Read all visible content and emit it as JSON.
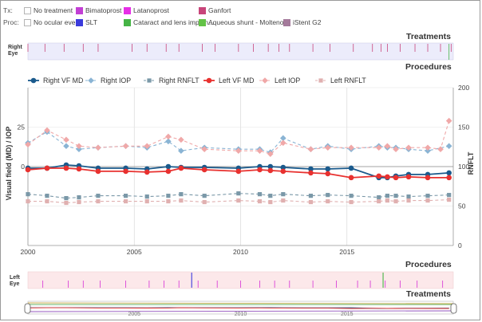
{
  "legend_tx": {
    "label": "Tx:",
    "items": [
      {
        "name": "No treatment",
        "color": "#ffffff"
      },
      {
        "name": "Bimatoprost",
        "color": "#c23fd4"
      },
      {
        "name": "Latanoprost",
        "color": "#e62ee6"
      },
      {
        "name": "Ganfort",
        "color": "#c8457a"
      }
    ]
  },
  "legend_proc": {
    "label": "Proc:",
    "items": [
      {
        "name": "No ocular event",
        "color": "#ffffff"
      },
      {
        "name": "SLT",
        "color": "#3b3bdc"
      },
      {
        "name": "Cataract and lens implan...",
        "color": "#46b446"
      },
      {
        "name": "Aqueous shunt - Molteno...",
        "color": "#63c246"
      },
      {
        "name": "iStent G2",
        "color": "#a47a9b"
      }
    ]
  },
  "right_eye": {
    "label_line1": "Right",
    "label_line2": "Eye",
    "treatments_title": "Treatments",
    "procedures_title": "Procedures",
    "treatment_marks": [
      2000.0,
      2000.8,
      2001.7,
      2002.6,
      2003.3,
      2004.9,
      2005.6,
      2006.5,
      2007.1,
      2008.2,
      2008.8,
      2009.9,
      2010.6,
      2011.3,
      2011.8,
      2012.3,
      2013.4,
      2014.2,
      2015.3,
      2016.2,
      2016.6,
      2016.9,
      2017.5,
      2018.2,
      2018.8,
      2019.4,
      2019.9
    ]
  },
  "left_eye": {
    "label_line1": "Left",
    "label_line2": "Eye",
    "treatments_title": "Treatments",
    "procedures_title": "Procedures",
    "treatment_marks": [
      2000.7,
      2001.9,
      2002.6,
      2003.4,
      2004.6,
      2005.7,
      2006.4,
      2007.1,
      2008.0,
      2008.9,
      2010.0,
      2010.9,
      2011.6,
      2012.3,
      2013.4,
      2014.5,
      2015.5,
      2016.1,
      2016.8,
      2017.5,
      2018.3,
      2019.5
    ],
    "procedure_marks": [
      {
        "x": 2007.7,
        "color": "#3b3bdc"
      },
      {
        "x": 2016.7,
        "color": "#46b446"
      }
    ]
  },
  "chart_data": {
    "type": "line",
    "xlim": [
      2000,
      2020
    ],
    "x_ticks": [
      2000,
      2005,
      2010,
      2015
    ],
    "ylabel_left": "Visual field (MD) / IOP",
    "ylabel_right": "RNFLT",
    "ylim_left": [
      -50,
      50
    ],
    "y_ticks_left": [
      0,
      25
    ],
    "ylim_right": [
      0,
      200
    ],
    "y_ticks_right": [
      0,
      50,
      100,
      150,
      200
    ],
    "grid": true,
    "legend_position": "top",
    "series": [
      {
        "name": "Right VF MD",
        "axis": "left",
        "color": "#1a5a8c",
        "dash": "solid",
        "marker": "circle",
        "x": [
          2000.0,
          2000.9,
          2001.8,
          2002.4,
          2003.3,
          2004.6,
          2005.6,
          2006.6,
          2007.2,
          2008.3,
          2009.9,
          2010.9,
          2011.4,
          2012.0,
          2013.3,
          2014.1,
          2015.2,
          2016.5,
          2016.9,
          2017.3,
          2017.9,
          2018.8,
          2019.8
        ],
        "y": [
          -1,
          -1,
          1,
          0.5,
          -1,
          -1,
          -1.5,
          0,
          -0.5,
          -0.5,
          -1,
          0,
          0,
          -0.5,
          -1.5,
          -1.5,
          -1,
          -7,
          -7,
          -6,
          -5,
          -5,
          -4
        ]
      },
      {
        "name": "Right IOP",
        "axis": "left",
        "color": "#8ab4d4",
        "dash": "4,3",
        "marker": "diamond",
        "x": [
          2000.0,
          2000.9,
          2001.8,
          2002.4,
          2003.3,
          2004.6,
          2005.6,
          2006.6,
          2007.2,
          2008.3,
          2009.9,
          2010.9,
          2011.4,
          2012.0,
          2013.3,
          2014.1,
          2015.2,
          2016.5,
          2016.9,
          2017.3,
          2017.9,
          2018.8,
          2019.8
        ],
        "y": [
          15,
          22,
          13,
          11,
          12,
          13,
          12,
          16,
          10,
          12,
          11,
          11,
          9,
          18,
          11,
          13,
          11,
          13,
          12,
          12,
          11,
          10,
          13
        ]
      },
      {
        "name": "Right RNFLT",
        "axis": "right",
        "color": "#7a98a8",
        "dash": "4,3",
        "marker": "square",
        "x": [
          2000.0,
          2000.9,
          2001.8,
          2002.4,
          2003.3,
          2004.6,
          2005.6,
          2006.6,
          2007.2,
          2008.3,
          2009.9,
          2010.9,
          2011.4,
          2012.0,
          2013.3,
          2014.1,
          2015.2,
          2016.5,
          2016.9,
          2017.3,
          2017.9,
          2018.8,
          2019.8
        ],
        "y": [
          65,
          63,
          60,
          61,
          63,
          63,
          62,
          63,
          65,
          63,
          66,
          65,
          63,
          65,
          63,
          64,
          63,
          61,
          63,
          63,
          62,
          63,
          64
        ]
      },
      {
        "name": "Left VF MD",
        "axis": "left",
        "color": "#e8312f",
        "dash": "solid",
        "marker": "circle",
        "x": [
          2000.0,
          2000.9,
          2001.8,
          2002.4,
          2003.3,
          2004.6,
          2005.6,
          2006.6,
          2007.2,
          2008.3,
          2009.9,
          2010.9,
          2011.4,
          2012.0,
          2013.3,
          2014.1,
          2015.2,
          2016.5,
          2016.9,
          2017.3,
          2017.9,
          2018.8,
          2019.8
        ],
        "y": [
          -2,
          -1,
          -1,
          -1.5,
          -3,
          -3,
          -3.5,
          -3,
          -1,
          -2,
          -3,
          -2,
          -2.5,
          -3,
          -4,
          -4.5,
          -7,
          -6,
          -6.5,
          -7,
          -6.5,
          -7,
          -7
        ]
      },
      {
        "name": "Left IOP",
        "axis": "left",
        "color": "#f0a8a8",
        "dash": "4,3",
        "marker": "diamond",
        "x": [
          2000.0,
          2000.9,
          2001.8,
          2002.4,
          2003.3,
          2004.6,
          2005.6,
          2006.6,
          2007.2,
          2008.3,
          2009.9,
          2010.9,
          2011.4,
          2012.0,
          2013.3,
          2014.1,
          2015.2,
          2016.5,
          2016.9,
          2017.3,
          2017.9,
          2018.8,
          2019.4,
          2019.8
        ],
        "y": [
          14,
          23,
          17,
          13,
          12,
          13,
          13,
          19,
          17,
          11,
          10,
          10,
          8,
          15,
          11,
          12,
          12,
          12,
          13,
          11,
          12,
          12,
          11,
          29
        ]
      },
      {
        "name": "Left RNFLT",
        "axis": "right",
        "color": "#e0b0b0",
        "dash": "4,3",
        "marker": "square",
        "x": [
          2000.0,
          2000.9,
          2001.8,
          2002.4,
          2003.3,
          2004.6,
          2005.6,
          2006.6,
          2007.2,
          2008.3,
          2009.9,
          2010.9,
          2011.4,
          2012.0,
          2013.3,
          2014.1,
          2015.2,
          2016.5,
          2016.9,
          2017.3,
          2017.9,
          2018.8,
          2019.8
        ],
        "y": [
          56,
          56,
          54,
          55,
          56,
          56,
          56,
          56,
          57,
          55,
          57,
          56,
          55,
          57,
          55,
          56,
          55,
          56,
          57,
          56,
          57,
          57,
          58
        ]
      }
    ]
  },
  "navigator": {
    "x_ticks": [
      2005,
      2010,
      2015
    ]
  }
}
